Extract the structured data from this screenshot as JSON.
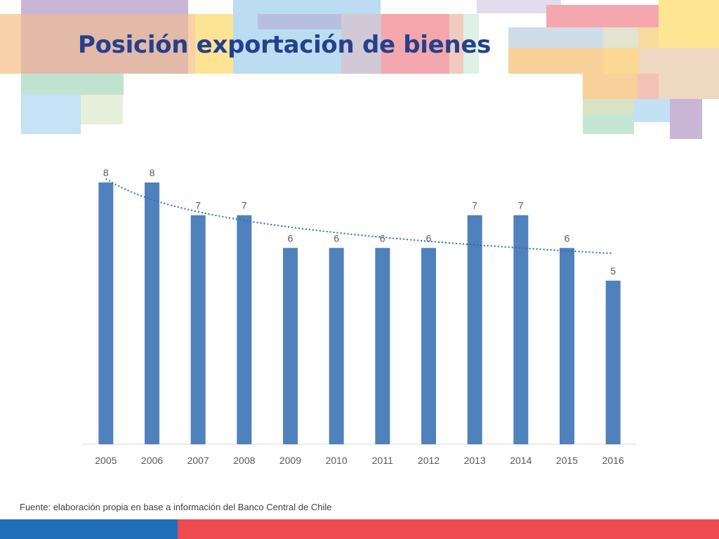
{
  "slide": {
    "title": "Posición exportación de bienes",
    "source": "Fuente: elaboración propia en base a información del Banco Central de Chile"
  },
  "colors": {
    "title": "#24408e",
    "bar": "#4f81bd",
    "trendline": "#2e6aa9",
    "footer_left": "#1e6fb8",
    "footer_right": "#ef4a50"
  },
  "chart_data": {
    "type": "bar",
    "categories": [
      "2005",
      "2006",
      "2007",
      "2008",
      "2009",
      "2010",
      "2011",
      "2012",
      "2013",
      "2014",
      "2015",
      "2016"
    ],
    "values": [
      8,
      8,
      7,
      7,
      6,
      6,
      6,
      6,
      7,
      7,
      6,
      5
    ],
    "data_labels": [
      "8",
      "8",
      "7",
      "7",
      "6",
      "6",
      "6",
      "6",
      "7",
      "7",
      "6",
      "5"
    ],
    "trendline": {
      "type": "logarithmic",
      "style": "dotted"
    },
    "ylim": [
      0,
      8
    ],
    "grid": false,
    "legend": "none"
  }
}
